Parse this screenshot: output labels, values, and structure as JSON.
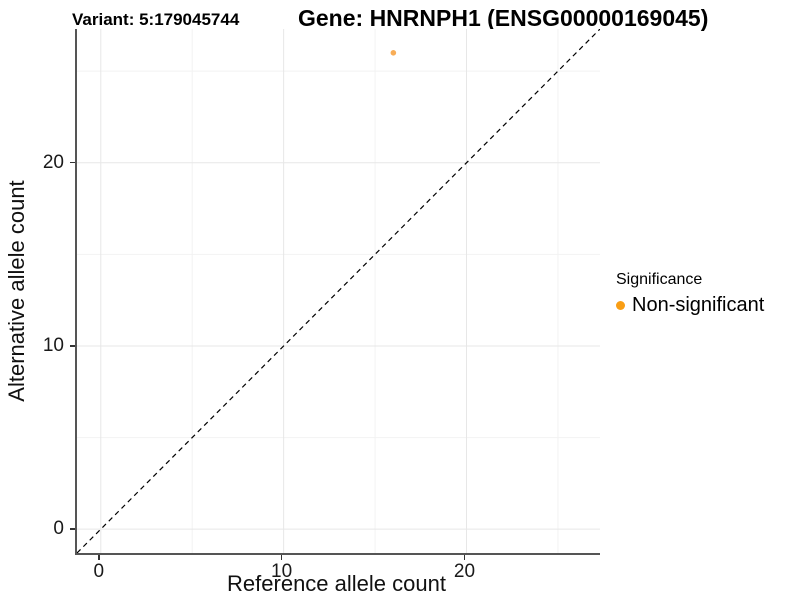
{
  "chart_data": {
    "type": "scatter",
    "title_left": "Variant: 5:179045744",
    "title_right": "Gene: HNRNPH1 (ENSG00000169045)",
    "xlabel": "Reference allele count",
    "ylabel": "Alternative allele count",
    "xlim": [
      -1.3,
      27.3
    ],
    "ylim": [
      -1.3,
      27.3
    ],
    "x_ticks": [
      0,
      10,
      20
    ],
    "y_ticks": [
      0,
      10,
      20
    ],
    "x_minor_ticks": [
      5,
      15,
      25
    ],
    "y_minor_ticks": [
      5,
      15,
      25
    ],
    "grid": true,
    "points": [
      {
        "x": 16,
        "y": 26,
        "series": "Non-significant"
      }
    ],
    "reference_line": {
      "type": "identity",
      "slope": 1,
      "intercept": 0,
      "style": "dashed",
      "color": "#000000"
    },
    "legend": {
      "title": "Significance",
      "position": "right",
      "items": [
        {
          "label": "Non-significant",
          "color": "#F99E15"
        }
      ]
    },
    "colors": {
      "point": "#F8A salmon",
      "point_fill": "#F8A94E",
      "axis_line": "#555555",
      "tick": "#333333",
      "grid_major": "#E7E7E7",
      "grid_minor": "#F2F2F2",
      "background": "#FFFFFF"
    }
  }
}
